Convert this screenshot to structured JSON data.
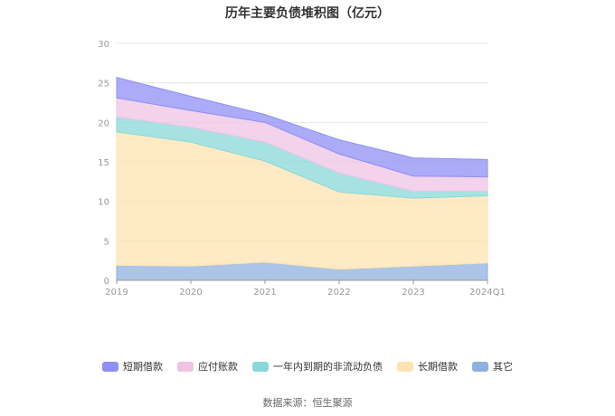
{
  "chart_data": {
    "type": "area",
    "stacked": true,
    "title": "历年主要负债堆积图（亿元）",
    "categories": [
      "2019",
      "2020",
      "2021",
      "2022",
      "2023",
      "2024Q1"
    ],
    "yticks": [
      "0",
      "5",
      "10",
      "15",
      "20",
      "25",
      "30"
    ],
    "ylim": [
      0,
      30
    ],
    "grid": true,
    "legend_position": "bottom",
    "series": [
      {
        "name": "其它",
        "values": [
          1.9,
          1.8,
          2.3,
          1.4,
          1.8,
          2.2
        ],
        "color": "#8fb0e0"
      },
      {
        "name": "长期借款",
        "values": [
          16.9,
          15.7,
          12.8,
          9.8,
          8.6,
          8.5
        ],
        "color": "#fde3b0"
      },
      {
        "name": "一年内到期的非流动负债",
        "values": [
          1.9,
          1.9,
          2.4,
          2.4,
          0.9,
          0.6
        ],
        "color": "#8ad8d8"
      },
      {
        "name": "应付账款",
        "values": [
          2.4,
          2.1,
          2.5,
          2.4,
          1.9,
          1.8
        ],
        "color": "#eec4e4"
      },
      {
        "name": "短期借款",
        "values": [
          2.6,
          1.8,
          1.0,
          1.8,
          2.3,
          2.2
        ],
        "color": "#8f8ff5"
      }
    ],
    "legend_order": [
      "短期借款",
      "应付账款",
      "一年内到期的非流动负债",
      "长期借款",
      "其它"
    ]
  },
  "source": "数据来源：恒生聚源"
}
